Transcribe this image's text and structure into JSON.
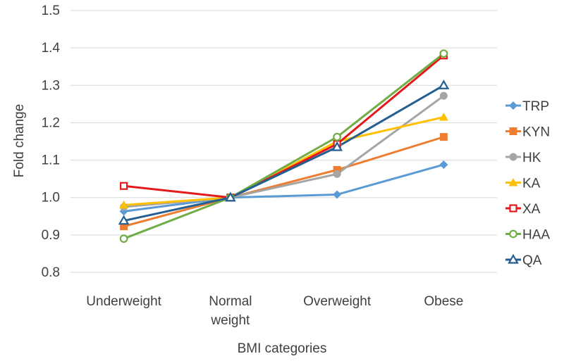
{
  "chart_data": {
    "type": "line",
    "title": "",
    "xlabel": "BMI categories",
    "ylabel": "Fold change",
    "categories": [
      [
        "Underweight"
      ],
      [
        "Normal",
        "weight"
      ],
      [
        "Overweight"
      ],
      [
        "Obese"
      ]
    ],
    "ylim": [
      0.8,
      1.5
    ],
    "yticks": [
      "0.8",
      "0.9",
      "1.0",
      "1.1",
      "1.2",
      "1.3",
      "1.4",
      "1.5"
    ],
    "grid": true,
    "legend_position": "right",
    "series": [
      {
        "name": "TRP",
        "color": "#5B9BD5",
        "marker": "diamond",
        "values": [
          0.963,
          1.0,
          1.008,
          1.088
        ]
      },
      {
        "name": "KYN",
        "color": "#ED7D31",
        "marker": "square",
        "values": [
          0.923,
          1.0,
          1.074,
          1.162
        ]
      },
      {
        "name": "HK",
        "color": "#A5A5A5",
        "marker": "circle",
        "values": [
          0.975,
          1.0,
          1.063,
          1.272
        ]
      },
      {
        "name": "KA",
        "color": "#FFC000",
        "marker": "triangle",
        "values": [
          0.98,
          1.0,
          1.15,
          1.215
        ]
      },
      {
        "name": "XA",
        "color": "#E31A1C",
        "marker": "open-square",
        "values": [
          1.031,
          1.0,
          1.143,
          1.38
        ]
      },
      {
        "name": "HAA",
        "color": "#70AD47",
        "marker": "open-circle",
        "values": [
          0.89,
          1.0,
          1.162,
          1.385
        ]
      },
      {
        "name": "QA",
        "color": "#255E91",
        "marker": "open-triangle",
        "values": [
          0.938,
          1.0,
          1.135,
          1.3
        ]
      }
    ]
  }
}
